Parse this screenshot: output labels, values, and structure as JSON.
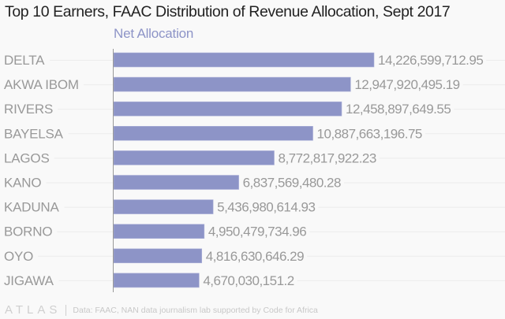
{
  "chart_data": {
    "type": "bar",
    "orientation": "horizontal",
    "title": "Top 10 Earners, FAAC Distribution of Revenue Allocation, Sept 2017",
    "legend": [
      "Net Allocation"
    ],
    "legend_placement": "top-left",
    "xlabel": "",
    "ylabel": "",
    "grid": true,
    "xlim": [
      0,
      14226599712.95
    ],
    "categories": [
      "DELTA",
      "AKWA IBOM",
      "RIVERS",
      "BAYELSA",
      "LAGOS",
      "KANO",
      "KADUNA",
      "BORNO",
      "OYO",
      "JIGAWA"
    ],
    "series": [
      {
        "name": "Net Allocation",
        "color": "#8d94c7",
        "values": [
          14226599712.95,
          12947920495.19,
          12458897649.55,
          10887663196.75,
          8772817922.23,
          6837569480.28,
          5436980614.93,
          4950479734.96,
          4816630646.29,
          4670030151.2
        ],
        "labels": [
          "14,226,599,712.95",
          "12,947,920,495.19",
          "12,458,897,649.55",
          "10,887,663,196.75",
          "8,772,817,922.23",
          "6,837,569,480.28",
          "5,436,980,614.93",
          "4,950,479,734.96",
          "4,816,630,646.29",
          "4,670,030,151.2"
        ]
      }
    ]
  },
  "footer": {
    "brand": "ATLAS",
    "source": "Data: FAAC, NAN data journalism lab supported by Code for Africa"
  }
}
